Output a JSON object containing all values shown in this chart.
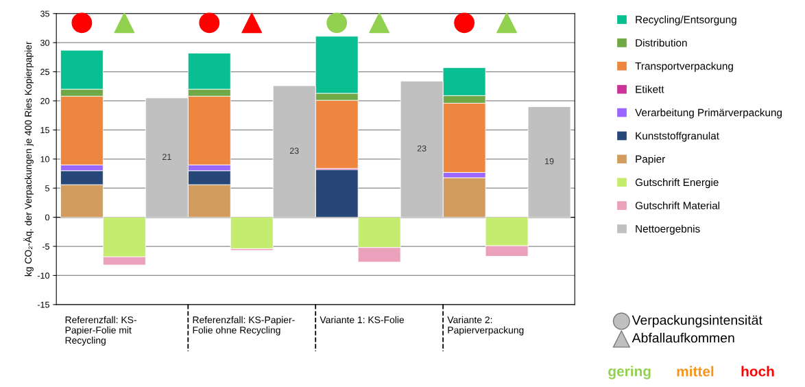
{
  "chart_data": [
    {
      "type": "bar",
      "stacked": true,
      "ylabel": "kg CO₂-Äq. der Verpackungen je 400 Ries Kopierpapier",
      "categories": [
        null,
        "Referenzfall: KS-\nPapier-Folie mit\nRecycling",
        null,
        null,
        "Referenzfall: KS-Papier-\nFolie ohne Recycling",
        null,
        null,
        "Variante 1: KS-Folie",
        null,
        null,
        "Variante 2:\nPapierverpackung",
        null
      ],
      "ylim": [
        -15,
        35
      ],
      "yticks": [
        -15,
        -10,
        -5,
        0,
        5,
        10,
        15,
        20,
        25,
        30,
        35
      ],
      "grid": "y",
      "legend": "right",
      "annotations": [
        "Verpackungsintensität",
        "Abfallaufkommen"
      ],
      "series": [
        {
          "name": "Papier",
          "color": "#d29c5f",
          "values": [
            5.6,
            null,
            null,
            5.6,
            null,
            null,
            null,
            null,
            null,
            6.8,
            null,
            null
          ]
        },
        {
          "name": "Kunststoffgranulat",
          "color": "#264778",
          "values": [
            2.4,
            null,
            null,
            2.4,
            null,
            null,
            8.2,
            null,
            null,
            null,
            null,
            null
          ]
        },
        {
          "name": "Verarbeitung Primärverpackung",
          "color": "#9966ff",
          "values": [
            1.0,
            null,
            null,
            1.0,
            null,
            null,
            null,
            null,
            null,
            0.9,
            null,
            null
          ]
        },
        {
          "name": "Etikett",
          "color": "#cc3399",
          "values": [
            null,
            null,
            null,
            null,
            null,
            null,
            0.2,
            null,
            null,
            null,
            null,
            null
          ]
        },
        {
          "name": "Transportverpackung",
          "color": "#ee8640",
          "values": [
            11.8,
            null,
            null,
            11.8,
            null,
            null,
            11.7,
            null,
            null,
            11.9,
            null,
            null
          ]
        },
        {
          "name": "Distribution",
          "color": "#70a845",
          "values": [
            1.2,
            null,
            null,
            1.2,
            null,
            null,
            1.2,
            null,
            null,
            1.3,
            null,
            null
          ]
        },
        {
          "name": "Recycling/Entsorgung",
          "color": "#07bf91",
          "values": [
            6.7,
            null,
            null,
            6.2,
            null,
            null,
            9.8,
            null,
            null,
            4.8,
            null,
            null
          ]
        },
        {
          "name": "Gutschrift Energie",
          "color": "#c5ec6e",
          "values": [
            null,
            -6.8,
            null,
            null,
            -5.4,
            null,
            null,
            -5.2,
            null,
            null,
            -4.9,
            null
          ]
        },
        {
          "name": "Gutschrift Material",
          "color": "#eba0bb",
          "values": [
            null,
            -1.4,
            null,
            null,
            -0.3,
            null,
            null,
            -2.5,
            null,
            null,
            -1.8,
            null
          ]
        },
        {
          "name": "Nettoergebnis",
          "color": "#c0c0c0",
          "values": [
            null,
            null,
            20.5,
            null,
            null,
            22.6,
            null,
            null,
            23.4,
            null,
            null,
            19.0
          ],
          "value_labels": [
            null,
            null,
            "21",
            null,
            null,
            "23",
            null,
            null,
            "23",
            null,
            null,
            "19"
          ]
        },
        {
          "type": "scatter",
          "marker": "circle",
          "color": "#c0c0c0",
          "colors": [
            "#ff0000",
            null,
            null,
            "#ff0000",
            null,
            null,
            "#92d050",
            null,
            null,
            "#ff0000",
            null,
            null
          ],
          "values": [
            33.4,
            null,
            null,
            33.4,
            null,
            null,
            33.4,
            null,
            null,
            33.4,
            null,
            null
          ]
        },
        {
          "type": "scatter",
          "marker": "triangle",
          "color": "#c0c0c0",
          "colors": [
            null,
            "#92d050",
            null,
            null,
            "#ff0000",
            null,
            null,
            "#92d050",
            null,
            null,
            "#92d050",
            null
          ],
          "values": [
            null,
            33.4,
            null,
            null,
            33.4,
            null,
            null,
            33.4,
            null,
            null,
            33.4,
            null
          ]
        }
      ]
    },
    {
      "type": "other",
      "categories": [
        "gering",
        "mittel",
        "hoch"
      ],
      "colors": [
        "#92d050",
        "#f7941d",
        "#ff0000"
      ]
    }
  ]
}
